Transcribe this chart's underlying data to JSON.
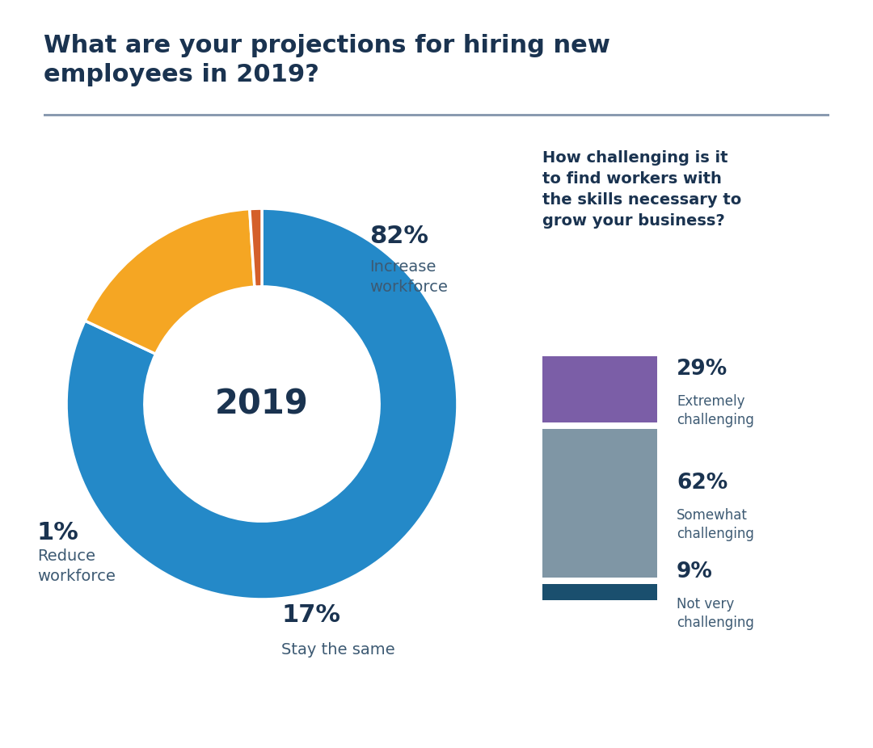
{
  "title": "What are your projections for hiring new\nemployees in 2019?",
  "title_color": "#1a3350",
  "title_fontsize": 22,
  "background_color": "#ffffff",
  "donut_center_label": "2019",
  "donut_slices": [
    82,
    17,
    1
  ],
  "donut_colors": [
    "#2489c8",
    "#f5a623",
    "#d45f2a"
  ],
  "right_panel_bg": "#e8eaf0",
  "right_panel_title": "How challenging is it\nto find workers with\nthe skills necessary to\ngrow your business?",
  "right_panel_title_color": "#1a3350",
  "bar_values": [
    29,
    62,
    9
  ],
  "bar_colors": [
    "#7b5ea7",
    "#7f96a5",
    "#1a4f6e"
  ],
  "bar_labels_pct": [
    "29%",
    "62%",
    "9%"
  ],
  "bar_labels_text": [
    "Extremely\nchallenging",
    "Somewhat\nchallenging",
    "Not very\nchallenging"
  ],
  "text_color": "#3d5a73",
  "donut_text_color": "#1a3350",
  "separator_color": "#8a9ab0"
}
